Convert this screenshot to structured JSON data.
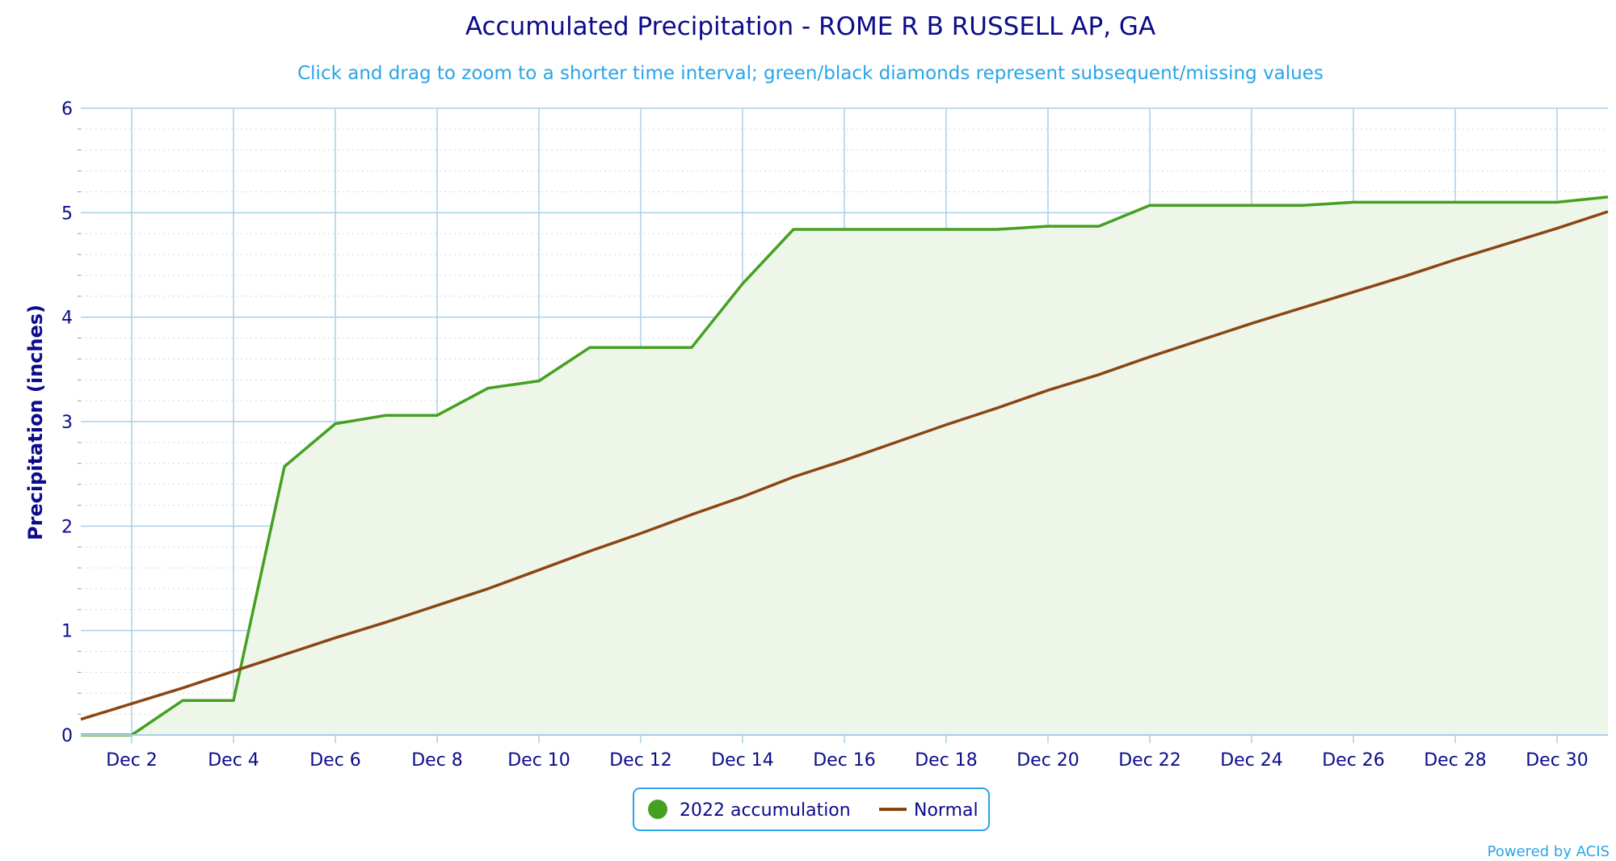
{
  "chart_data": {
    "type": "area",
    "title": "Accumulated Precipitation - ROME R B RUSSELL AP, GA",
    "subtitle": "Click and drag to zoom to a shorter time interval; green/black diamonds represent subsequent/missing values",
    "ylabel": "Precipitation (inches)",
    "xlabel": "",
    "ylim": [
      0,
      6
    ],
    "yticks": [
      "0",
      "1",
      "2",
      "3",
      "4",
      "5",
      "6"
    ],
    "xlim": [
      1,
      31
    ],
    "xticks": [
      {
        "day": 2,
        "label": "Dec 2"
      },
      {
        "day": 4,
        "label": "Dec 4"
      },
      {
        "day": 6,
        "label": "Dec 6"
      },
      {
        "day": 8,
        "label": "Dec 8"
      },
      {
        "day": 10,
        "label": "Dec 10"
      },
      {
        "day": 12,
        "label": "Dec 12"
      },
      {
        "day": 14,
        "label": "Dec 14"
      },
      {
        "day": 16,
        "label": "Dec 16"
      },
      {
        "day": 18,
        "label": "Dec 18"
      },
      {
        "day": 20,
        "label": "Dec 20"
      },
      {
        "day": 22,
        "label": "Dec 22"
      },
      {
        "day": 24,
        "label": "Dec 24"
      },
      {
        "day": 26,
        "label": "Dec 26"
      },
      {
        "day": 28,
        "label": "Dec 28"
      },
      {
        "day": 30,
        "label": "Dec 30"
      }
    ],
    "grid": true,
    "legend_position": "bottom-center",
    "x": [
      1,
      2,
      3,
      4,
      5,
      6,
      7,
      8,
      9,
      10,
      11,
      12,
      13,
      14,
      15,
      16,
      17,
      18,
      19,
      20,
      21,
      22,
      23,
      24,
      25,
      26,
      27,
      28,
      29,
      30,
      31
    ],
    "series": [
      {
        "name": "2022 accumulation",
        "color": "#44a020",
        "fill": "#eef6ea",
        "legend_marker": "circle",
        "values": [
          0.0,
          0.0,
          0.33,
          0.33,
          2.57,
          2.98,
          3.06,
          3.06,
          3.32,
          3.39,
          3.71,
          3.71,
          3.71,
          4.32,
          4.84,
          4.84,
          4.84,
          4.84,
          4.84,
          4.87,
          4.87,
          5.07,
          5.07,
          5.07,
          5.07,
          5.1,
          5.1,
          5.1,
          5.1,
          5.1,
          5.15
        ]
      },
      {
        "name": "Normal",
        "color": "#8b4513",
        "legend_marker": "line",
        "values": [
          0.15,
          0.3,
          0.45,
          0.61,
          0.77,
          0.93,
          1.08,
          1.24,
          1.4,
          1.58,
          1.76,
          1.93,
          2.11,
          2.28,
          2.47,
          2.63,
          2.8,
          2.97,
          3.13,
          3.3,
          3.45,
          3.62,
          3.78,
          3.94,
          4.09,
          4.24,
          4.39,
          4.55,
          4.7,
          4.85,
          5.01
        ]
      }
    ],
    "credit": "Powered by ACIS",
    "colors": {
      "title": "#0b0b8c",
      "subtitle": "#2aa4e6",
      "grid": "#a8cfe8",
      "minor_grid": "#d6d6d6"
    }
  }
}
